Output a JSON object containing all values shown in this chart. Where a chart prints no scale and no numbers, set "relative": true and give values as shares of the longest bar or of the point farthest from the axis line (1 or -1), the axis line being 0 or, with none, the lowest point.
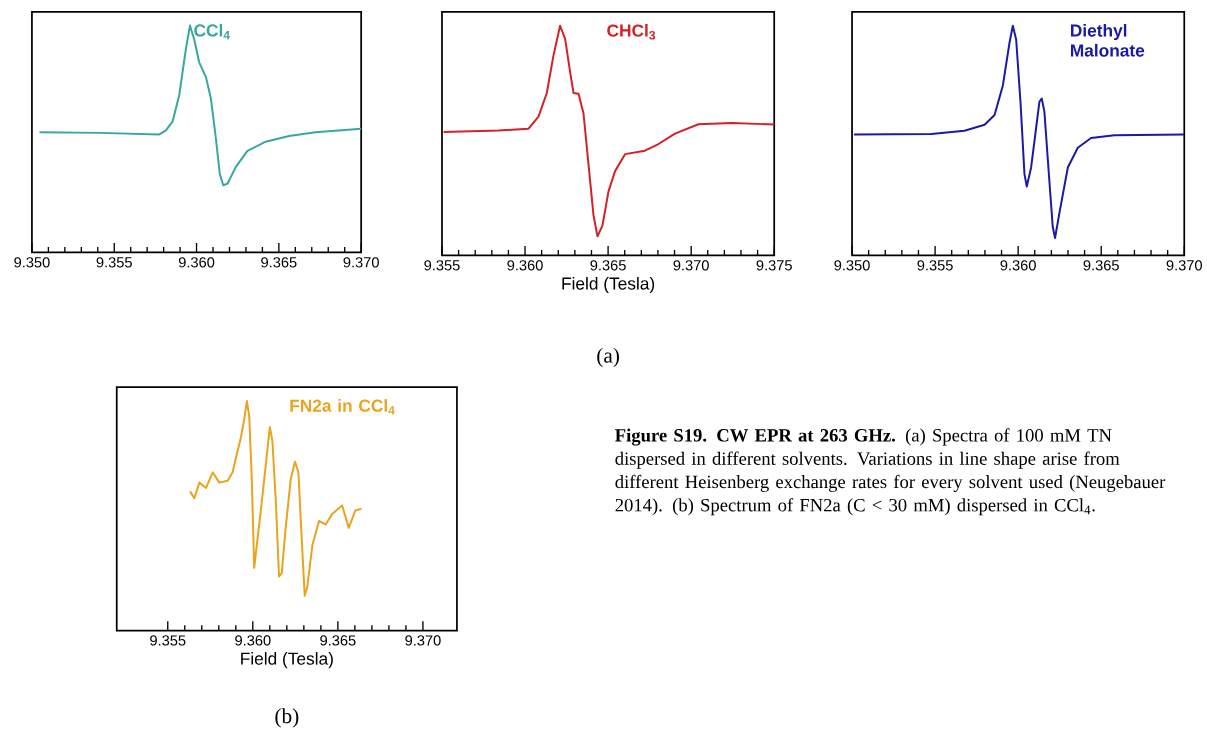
{
  "chart_data": [
    {
      "type": "line",
      "relative": true,
      "tick_labels": "x",
      "xlim": [
        9.35,
        9.37
      ],
      "xticks": [
        {
          "value": 9.35,
          "label": "9.350"
        },
        {
          "value": 9.355,
          "label": "9.355"
        },
        {
          "value": 9.36,
          "label": "9.360"
        },
        {
          "value": 9.365,
          "label": "9.365"
        },
        {
          "value": 9.37,
          "label": "9.370"
        }
      ],
      "series": [
        {
          "name": "CCl$_{4}$",
          "color": "#3aa6a0",
          "x": [
            9.35046,
            9.3541,
            9.35774,
            9.35814,
            9.35855,
            9.35895,
            9.35935,
            9.3596,
            9.35986,
            9.36016,
            9.36057,
            9.36087,
            9.36117,
            9.36141,
            9.36162,
            9.36188,
            9.36238,
            9.36309,
            9.3642,
            9.36562,
            9.36723,
            9.37
          ],
          "values": [
            0.53,
            0.527,
            0.52,
            0.538,
            0.578,
            0.694,
            0.896,
            1,
            0.939,
            0.838,
            0.773,
            0.679,
            0.506,
            0.347,
            0.296,
            0.303,
            0.376,
            0.448,
            0.488,
            0.513,
            0.53,
            0.545
          ]
        }
      ]
    },
    {
      "type": "line",
      "relative": true,
      "tick_labels": "x",
      "xlim": [
        9.355,
        9.375
      ],
      "xlabel": "Field  (Tesla)",
      "annotations": [
        "(a)"
      ],
      "xticks": [
        {
          "value": 9.355,
          "label": "9.355"
        },
        {
          "value": 9.36,
          "label": "9.360"
        },
        {
          "value": 9.365,
          "label": "9.365"
        },
        {
          "value": 9.37,
          "label": "9.370"
        },
        {
          "value": 9.375,
          "label": "9.375"
        }
      ],
      "series": [
        {
          "name": "CHCl$_{3}$",
          "color": "#d42027",
          "x": [
            9.3551,
            9.35841,
            9.36021,
            9.36081,
            9.36131,
            9.36171,
            9.36211,
            9.36241,
            9.36272,
            9.36292,
            9.36322,
            9.36352,
            9.36382,
            9.36412,
            9.36436,
            9.36466,
            9.36502,
            9.36542,
            9.36602,
            9.36722,
            9.36803,
            9.36903,
            9.37043,
            9.37243,
            9.375
          ],
          "values": [
            0.537,
            0.544,
            0.552,
            0.604,
            0.707,
            0.87,
            1,
            0.944,
            0.796,
            0.707,
            0.704,
            0.618,
            0.396,
            0.175,
            0.083,
            0.13,
            0.278,
            0.367,
            0.441,
            0.456,
            0.485,
            0.53,
            0.571,
            0.577,
            0.57
          ]
        }
      ]
    },
    {
      "type": "line",
      "relative": true,
      "tick_labels": "x",
      "xlim": [
        9.35,
        9.37
      ],
      "xticks": [
        {
          "value": 9.35,
          "label": "9.350"
        },
        {
          "value": 9.355,
          "label": "9.355"
        },
        {
          "value": 9.36,
          "label": "9.360"
        },
        {
          "value": 9.365,
          "label": "9.365"
        },
        {
          "value": 9.37,
          "label": "9.370"
        }
      ],
      "series": [
        {
          "name": "Diethyl Malonate",
          "color": "#1a1aa6",
          "x": [
            9.35012,
            9.35477,
            9.35677,
            9.35798,
            9.35858,
            9.35908,
            9.35948,
            9.35968,
            9.35988,
            9.36014,
            9.36038,
            9.36052,
            9.36078,
            9.36108,
            9.36128,
            9.36142,
            9.36158,
            9.36182,
            9.36208,
            9.36222,
            9.36248,
            9.36299,
            9.36359,
            9.36439,
            9.36579,
            9.37
          ],
          "values": [
            0.526,
            0.529,
            0.543,
            0.569,
            0.611,
            0.74,
            0.926,
            1,
            0.94,
            0.669,
            0.354,
            0.3,
            0.383,
            0.554,
            0.669,
            0.683,
            0.626,
            0.383,
            0.126,
            0.076,
            0.183,
            0.383,
            0.469,
            0.511,
            0.523,
            0.526
          ]
        }
      ]
    },
    {
      "type": "line",
      "relative": true,
      "tick_labels": "x",
      "xlim": [
        9.352,
        9.372
      ],
      "xlabel": "Field (Tesla)",
      "annotations": [
        "(b)",
        "**Figure S19. CW EPR at 263 GHz.** (a) Spectra of 100 mM TN dispersed in different solvents. Variations in line shape arise from different Heisenberg exchange rates for every solvent used (Neugebauer 2014). (b) Spectrum of FN2a (C < 30 mM) dispersed in CCl$_{4}$."
      ],
      "xticks": [
        {
          "value": 9.355,
          "label": "9.355"
        },
        {
          "value": 9.36,
          "label": "9.360"
        },
        {
          "value": 9.365,
          "label": "9.365"
        },
        {
          "value": 9.37,
          "label": "9.370"
        }
      ],
      "series": [
        {
          "name": "FN2a in CCl$_{4}$",
          "color": "#e8a41c",
          "x": [
            9.35631,
            9.35656,
            9.35686,
            9.35725,
            9.35764,
            9.35803,
            9.35852,
            9.35881,
            9.359,
            9.3593,
            9.35949,
            9.35965,
            9.35979,
            9.35994,
            9.36008,
            9.36021,
            9.36047,
            9.36076,
            9.361,
            9.36115,
            9.36135,
            9.36154,
            9.3617,
            9.36193,
            9.36223,
            9.36248,
            9.36268,
            9.36281,
            9.36305,
            9.3632,
            9.3635,
            9.36389,
            9.36428,
            9.36467,
            9.36525,
            9.36564,
            9.36603,
            9.36639
          ],
          "values": [
            0.606,
            0.576,
            0.644,
            0.621,
            0.689,
            0.644,
            0.652,
            0.689,
            0.75,
            0.841,
            0.917,
            1,
            0.932,
            0.659,
            0.273,
            0.356,
            0.523,
            0.72,
            0.886,
            0.826,
            0.568,
            0.235,
            0.25,
            0.447,
            0.659,
            0.735,
            0.689,
            0.492,
            0.152,
            0.189,
            0.371,
            0.477,
            0.462,
            0.508,
            0.545,
            0.447,
            0.523,
            0.53
          ]
        }
      ]
    }
  ]
}
